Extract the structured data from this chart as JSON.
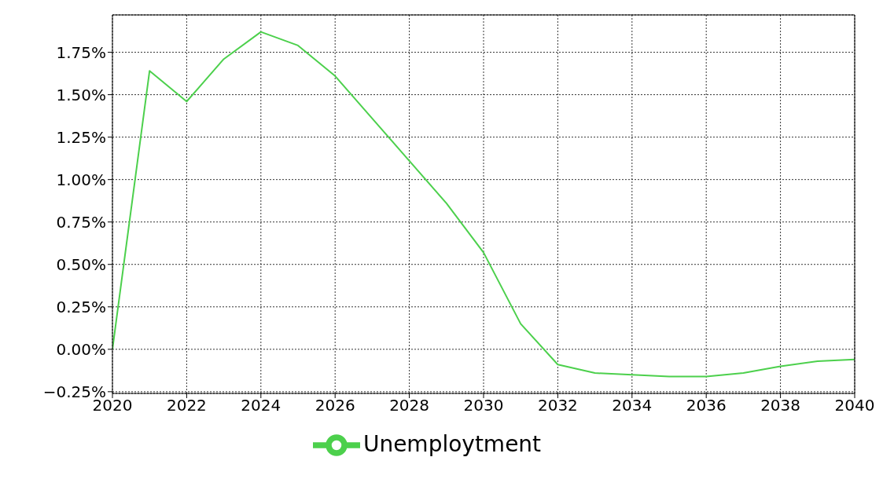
{
  "chart_data": {
    "type": "line",
    "x": [
      2020,
      2021,
      2022,
      2023,
      2024,
      2025,
      2026,
      2027,
      2028,
      2029,
      2030,
      2031,
      2032,
      2033,
      2034,
      2035,
      2036,
      2037,
      2038,
      2039,
      2040
    ],
    "series": [
      {
        "name": "Unemploytment",
        "color": "#4cd04c",
        "values": [
          0,
          1.64,
          1.46,
          1.71,
          1.87,
          1.79,
          1.61,
          1.36,
          1.11,
          0.86,
          0.57,
          0.15,
          -0.09,
          -0.14,
          -0.15,
          -0.16,
          -0.16,
          -0.14,
          -0.1,
          -0.07,
          -0.06
        ]
      }
    ],
    "xlim": [
      2020,
      2040
    ],
    "xticks": [
      2020,
      2022,
      2024,
      2026,
      2028,
      2030,
      2032,
      2034,
      2036,
      2038,
      2040
    ],
    "ylim": [
      -0.26,
      1.97
    ],
    "yticks": [
      {
        "value": -0.25,
        "label": "−0.25%"
      },
      {
        "value": 0,
        "label": "0.00%"
      },
      {
        "value": 0.25,
        "label": "0.25%"
      },
      {
        "value": 0.5,
        "label": "0.50%"
      },
      {
        "value": 0.75,
        "label": "0.75%"
      },
      {
        "value": 1,
        "label": "1.00%"
      },
      {
        "value": 1.25,
        "label": "1.25%"
      },
      {
        "value": 1.5,
        "label": "1.50%"
      },
      {
        "value": 1.75,
        "label": "1.75%"
      }
    ],
    "grid": true,
    "legend": "bottom",
    "marker": "none",
    "line_style": "solid"
  }
}
